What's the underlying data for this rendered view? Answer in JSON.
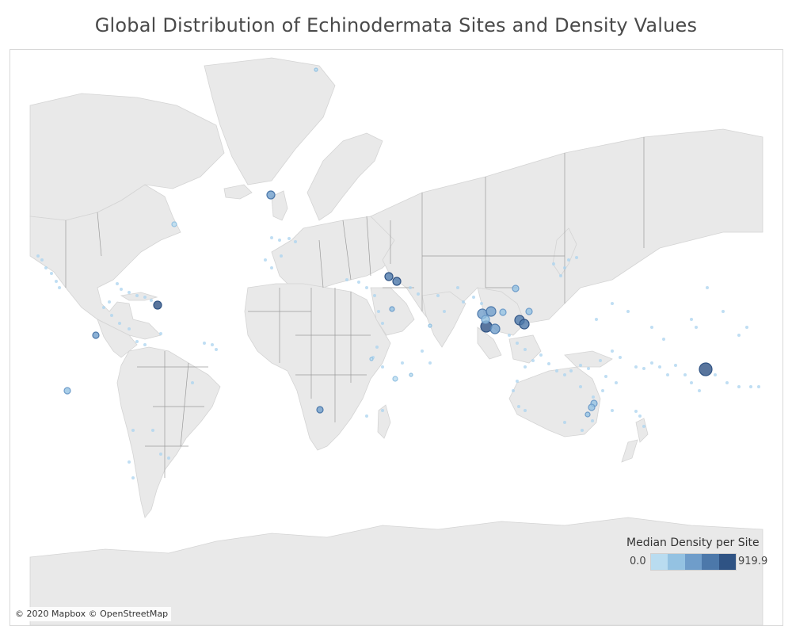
{
  "title": "Global Distribution of Echinodermata Sites and Density Values",
  "legend": {
    "title": "Median Density per Site",
    "min_label": "0.0",
    "max_label": "919.9",
    "ramp_colors": [
      "#b9dcf0",
      "#94c2e2",
      "#6f9dca",
      "#4c78aa",
      "#2f5384"
    ]
  },
  "attribution": "© 2020 Mapbox © OpenStreetMap",
  "colors": {
    "ocean": "#ffffff",
    "land": "#e9e9e9",
    "border": "#9a9a9a",
    "site_low": "#a9d3ef"
  }
}
